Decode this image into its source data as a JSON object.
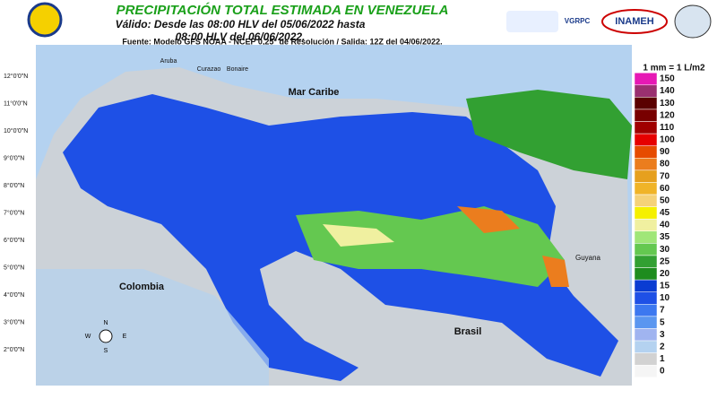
{
  "header": {
    "title": "PRECIPITACIÓN TOTAL ESTIMADA EN VENEZUELA",
    "valid_line1": "Válido: Desde las 08:00 HLV del 05/06/2022 hasta",
    "valid_line2": "08:00 HLV del 06/06/2022.",
    "source": "Fuente: Modelo GFS NOAA - NCEP 0,25° de Resolución / Salida: 12Z del 04/06/2022.",
    "logos": [
      "VGRPC",
      "INAMEH"
    ]
  },
  "map": {
    "lat_labels": [
      "12°0'0\"N",
      "11°0'0\"N",
      "10°0'0\"N",
      "9°0'0\"N",
      "8°0'0\"N",
      "7°0'0\"N",
      "6°0'0\"N",
      "5°0'0\"N",
      "4°0'0\"N",
      "3°0'0\"N",
      "2°0'0\"N"
    ],
    "places": [
      "Mar Caribe",
      "Colombia",
      "Brasil",
      "Guyana",
      "Aruba",
      "Curazao",
      "Bonaire"
    ],
    "compass": [
      "N",
      "S",
      "E",
      "W"
    ]
  },
  "legend": {
    "title": "1 mm = 1 L/m2",
    "items": [
      {
        "label": "150",
        "color": "#e619b4"
      },
      {
        "label": "140",
        "color": "#9a3070"
      },
      {
        "label": "130",
        "color": "#5a0000"
      },
      {
        "label": "120",
        "color": "#780000"
      },
      {
        "label": "110",
        "color": "#a00000"
      },
      {
        "label": "100",
        "color": "#e60000"
      },
      {
        "label": "90",
        "color": "#e64b00"
      },
      {
        "label": "80",
        "color": "#eb7d1e"
      },
      {
        "label": "70",
        "color": "#e6a01e"
      },
      {
        "label": "60",
        "color": "#f0b428"
      },
      {
        "label": "50",
        "color": "#f5d278"
      },
      {
        "label": "45",
        "color": "#f5f000"
      },
      {
        "label": "40",
        "color": "#f0f0a0"
      },
      {
        "label": "35",
        "color": "#a0e678"
      },
      {
        "label": "30",
        "color": "#64c850"
      },
      {
        "label": "25",
        "color": "#32a032"
      },
      {
        "label": "20",
        "color": "#1e8c1e"
      },
      {
        "label": "15",
        "color": "#0a3cd2"
      },
      {
        "label": "10",
        "color": "#1e50e6"
      },
      {
        "label": "7",
        "color": "#3c78f0"
      },
      {
        "label": "5",
        "color": "#5a96f0"
      },
      {
        "label": "3",
        "color": "#a0b4f0"
      },
      {
        "label": "2",
        "color": "#b4d2f0"
      },
      {
        "label": "1",
        "color": "#d2d2d2"
      },
      {
        "label": "0",
        "color": "#f5f5f5"
      }
    ]
  }
}
